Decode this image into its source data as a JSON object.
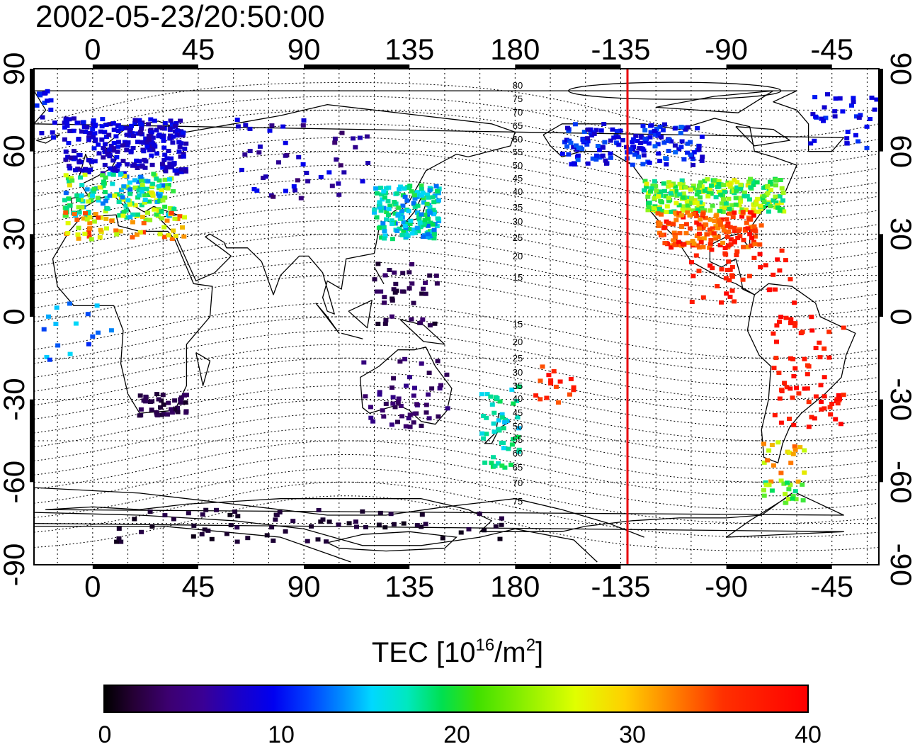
{
  "title": "2002-05-23/20:50:00",
  "map": {
    "lon_ticks": [
      "0",
      "45",
      "90",
      "135",
      "180",
      "-135",
      "-90",
      "-45"
    ],
    "lat_ticks": [
      "90",
      "60",
      "30",
      "0",
      "-30",
      "-60",
      "-90"
    ],
    "marker_longitude_label": "-135",
    "marker_color": "#e8000b",
    "contour_labels_north": [
      "80",
      "75",
      "70",
      "65",
      "60",
      "55",
      "50",
      "45",
      "40",
      "35",
      "30",
      "25",
      "20",
      "15"
    ],
    "contour_labels_south": [
      "15",
      "20",
      "25",
      "30",
      "35",
      "40",
      "45",
      "50",
      "55",
      "60",
      "65",
      "70",
      "75"
    ]
  },
  "colorbar": {
    "title_main": "TEC  [10",
    "title_exp1": "16",
    "title_mid": "/m",
    "title_exp2": "2",
    "title_end": "]",
    "ticks": [
      "0",
      "10",
      "20",
      "30",
      "40"
    ],
    "range": [
      0,
      40
    ],
    "colormap": [
      "#000000",
      "#3c0070",
      "#0000f0",
      "#00d8ff",
      "#00e050",
      "#e0ff00",
      "#ff8000",
      "#ff0000"
    ]
  }
}
